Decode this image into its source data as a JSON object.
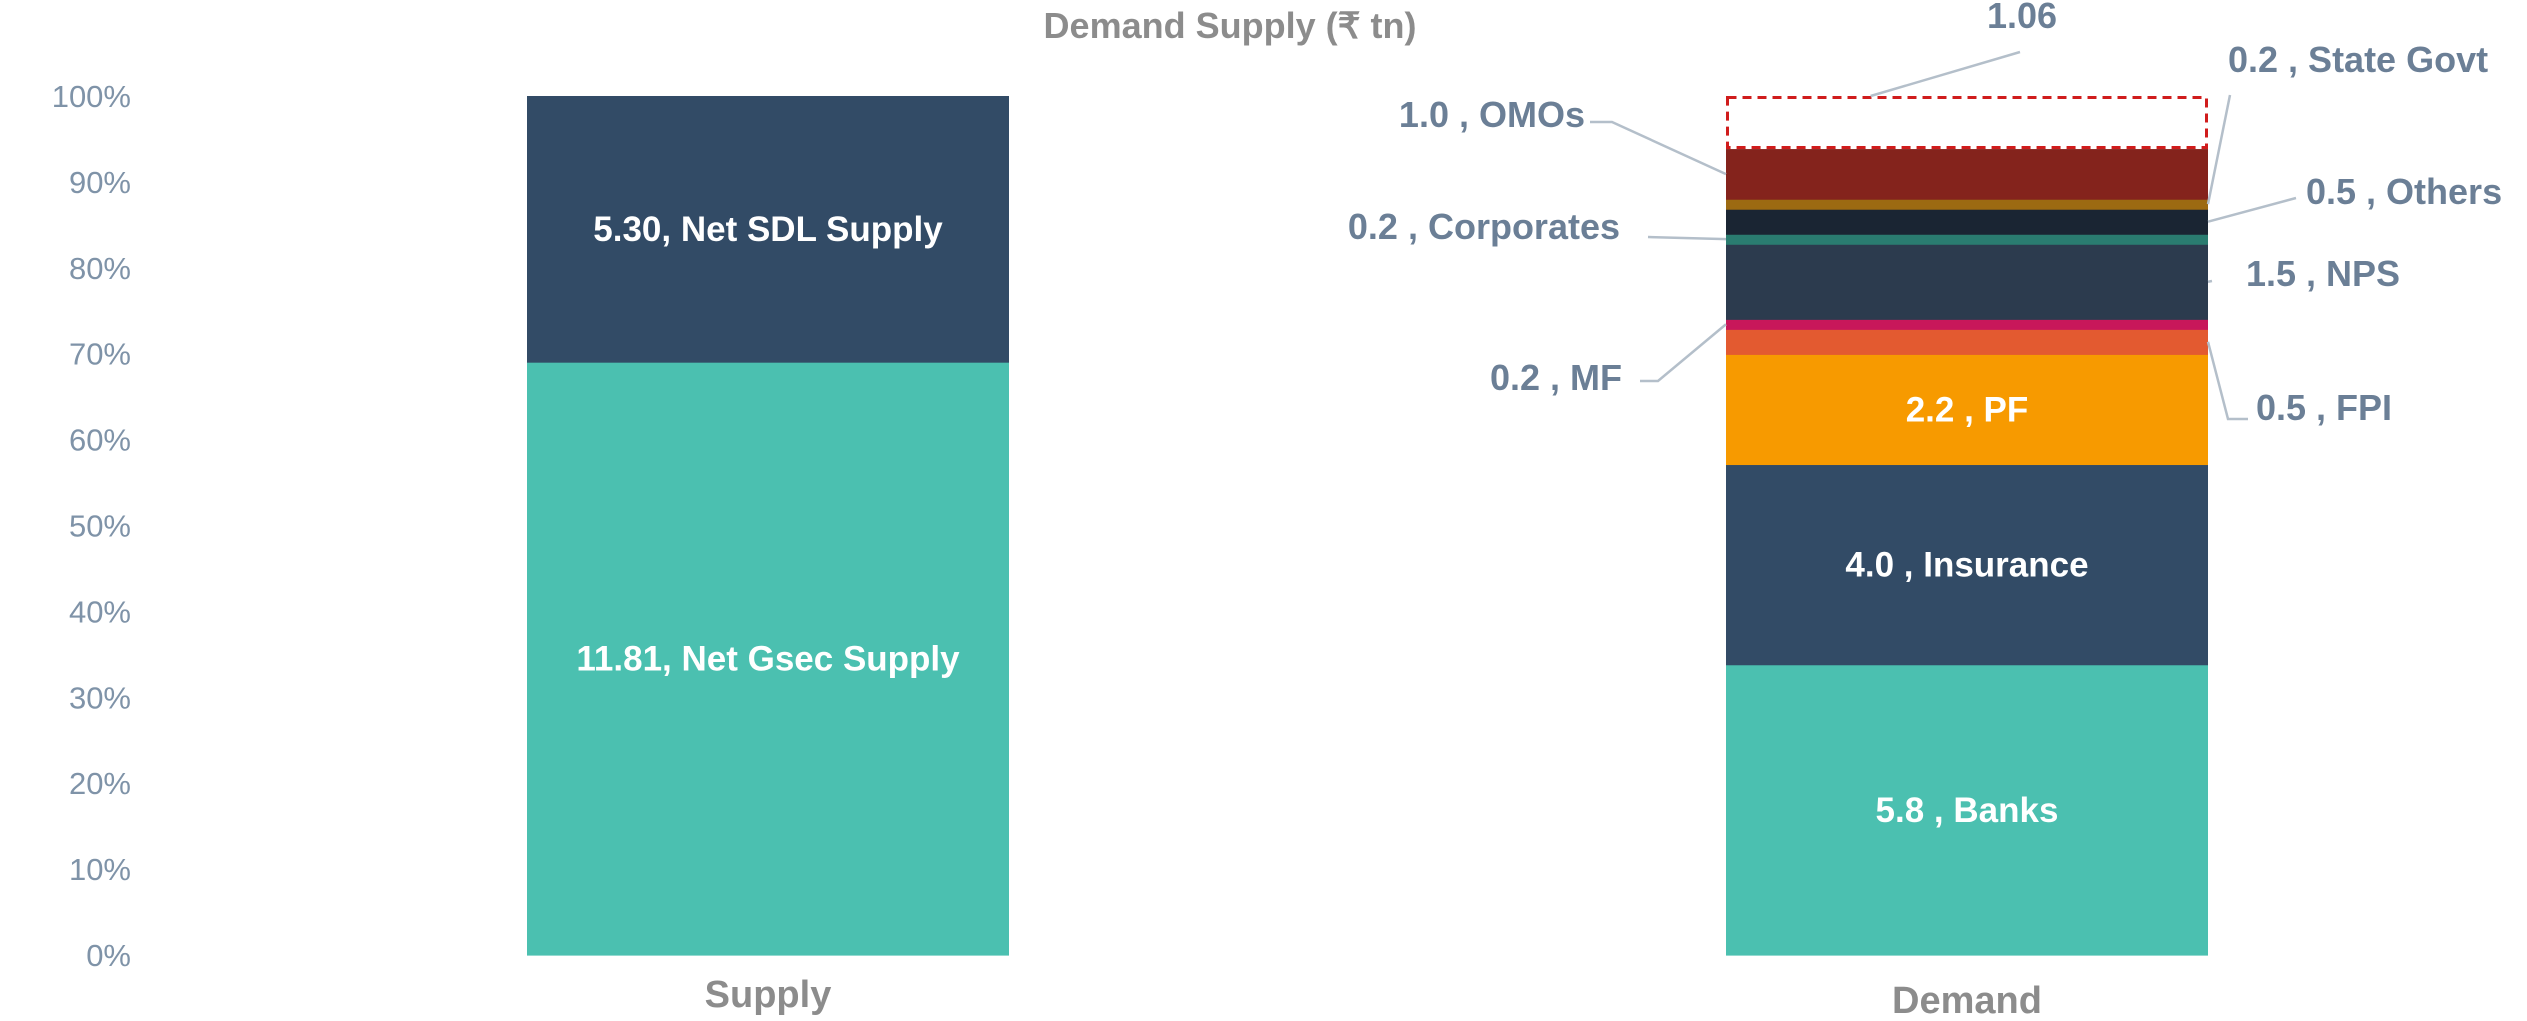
{
  "chart_data": {
    "type": "bar",
    "stacked": true,
    "percent_stacked": true,
    "title": "Demand Supply (₹ tn)",
    "y_ticks": [
      "0%",
      "10%",
      "20%",
      "30%",
      "40%",
      "50%",
      "60%",
      "70%",
      "80%",
      "90%",
      "100%"
    ],
    "ylim": [
      0,
      100
    ],
    "grid": false,
    "categories": [
      "Supply",
      "Demand"
    ],
    "bars": [
      {
        "category": "Supply",
        "segments": [
          {
            "label": "11.81, Net Gsec Supply",
            "value": 11.81,
            "color": "#4bc0b0",
            "label_pos": "inside"
          },
          {
            "label": "5.30, Net SDL Supply",
            "value": 5.3,
            "color": "#324b66",
            "label_pos": "inside"
          }
        ]
      },
      {
        "category": "Demand",
        "segments": [
          {
            "label": "5.8 , Banks",
            "value": 5.8,
            "color": "#4bc0b0",
            "label_pos": "inside"
          },
          {
            "label": "4.0 , Insurance",
            "value": 4.0,
            "color": "#324b66",
            "label_pos": "inside"
          },
          {
            "label": "2.2 , PF",
            "value": 2.2,
            "color": "#f79a00",
            "label_pos": "inside"
          },
          {
            "label": "0.5 , FPI",
            "value": 0.5,
            "color": "#e35a30",
            "label_pos": "right"
          },
          {
            "label": "0.2 , MF",
            "value": 0.2,
            "color": "#c8175a",
            "label_pos": "left"
          },
          {
            "label": "1.5 , NPS",
            "value": 1.5,
            "color": "#2c3b4e",
            "label_pos": "right"
          },
          {
            "label": "0.2 , Corporates",
            "value": 0.2,
            "color": "#2a7c70",
            "label_pos": "left"
          },
          {
            "label": "0.5 , Others",
            "value": 0.5,
            "color": "#1a2533",
            "label_pos": "right"
          },
          {
            "label": "0.2 , State Govt",
            "value": 0.2,
            "color": "#9c6a12",
            "label_pos": "right"
          },
          {
            "label": "1.0 , OMOs",
            "value": 1.0,
            "color": "#84231c",
            "label_pos": "left"
          },
          {
            "label": "1.06",
            "value": 1.06,
            "color": "#ffffff",
            "border": "#d01c1c",
            "dashed": true,
            "label_pos": "top"
          }
        ]
      }
    ]
  }
}
